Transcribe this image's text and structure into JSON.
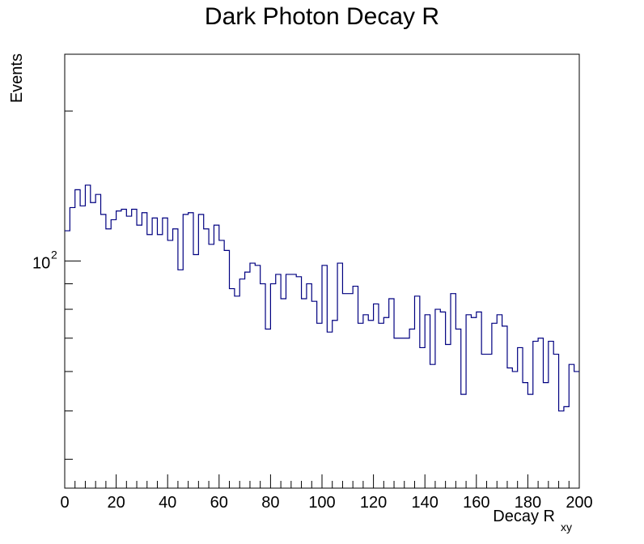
{
  "chart_data": {
    "type": "histogram",
    "title": "Dark Photon Decay R",
    "xlabel": "Decay R",
    "xlabel_subscript": "xy",
    "ylabel": "Events",
    "y_scale": "log",
    "xlim": [
      0,
      200
    ],
    "ylim": [
      35,
      260
    ],
    "grid": false,
    "x_ticks": [
      0,
      20,
      40,
      60,
      80,
      100,
      120,
      140,
      160,
      180,
      200
    ],
    "x_tick_labels": [
      "0",
      "20",
      "40",
      "60",
      "80",
      "100",
      "120",
      "140",
      "160",
      "180",
      "200"
    ],
    "y_major_tick_value": 100,
    "y_major_tick_label": "10",
    "y_major_tick_label_exp": "2",
    "bin_width": 2,
    "series": [
      {
        "name": "Decay R",
        "color": "#000080",
        "values": [
          115,
          128,
          139,
          129,
          142,
          131,
          136,
          124,
          116,
          121,
          126,
          127,
          123,
          127,
          118,
          125,
          113,
          122,
          113,
          122,
          110,
          116,
          96,
          124,
          125,
          103,
          124,
          116,
          108,
          118,
          110,
          105,
          88,
          85,
          92,
          95,
          99,
          98,
          90,
          73,
          90,
          94,
          84,
          94,
          94,
          93,
          84,
          90,
          83,
          75,
          98,
          72,
          76,
          99,
          86,
          86,
          89,
          75,
          78,
          76,
          82,
          75,
          77,
          84,
          70,
          70,
          70,
          73,
          85,
          67,
          78,
          62,
          80,
          79,
          68,
          86,
          73,
          54,
          78,
          77,
          79,
          65,
          65,
          75,
          78,
          74,
          61,
          60,
          67,
          57,
          54,
          69,
          70,
          57,
          69,
          65,
          50,
          51,
          62,
          60
        ]
      }
    ]
  }
}
